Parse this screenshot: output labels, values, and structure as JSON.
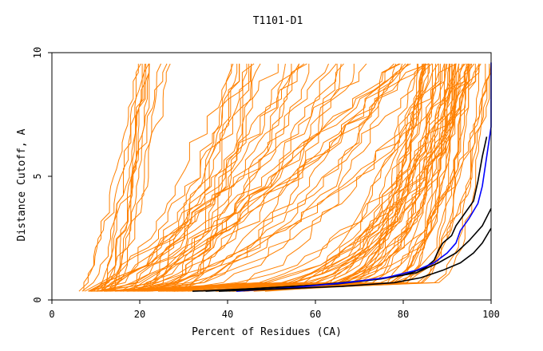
{
  "chart_data": {
    "type": "line",
    "title": "T1101-D1",
    "xlabel": "Percent of Residues (CA)",
    "ylabel": "Distance Cutoff, A",
    "xlim": [
      0,
      100
    ],
    "ylim": [
      0,
      10
    ],
    "xticks": [
      0,
      20,
      40,
      60,
      80,
      100
    ],
    "yticks": [
      0,
      5,
      10
    ],
    "grid": false,
    "legend": "none",
    "colors": {
      "background": "#ffffff",
      "axis": "#000000",
      "models": "#ff8000",
      "highlight_black": "#000000",
      "highlight_blue": "#0000ff"
    },
    "highlight_series": [
      {
        "color": "#000000",
        "points": [
          [
            32,
            0.35
          ],
          [
            45,
            0.45
          ],
          [
            60,
            0.6
          ],
          [
            72,
            0.8
          ],
          [
            80,
            1.0
          ],
          [
            85,
            1.3
          ],
          [
            87,
            1.6
          ],
          [
            88,
            2.0
          ],
          [
            89,
            2.3
          ],
          [
            91,
            2.6
          ],
          [
            92,
            3.0
          ],
          [
            94,
            3.5
          ],
          [
            96,
            4.0
          ],
          [
            97,
            4.8
          ],
          [
            98,
            5.8
          ],
          [
            99,
            6.6
          ]
        ]
      },
      {
        "color": "#000000",
        "points": [
          [
            35,
            0.35
          ],
          [
            50,
            0.5
          ],
          [
            65,
            0.65
          ],
          [
            75,
            0.85
          ],
          [
            83,
            1.1
          ],
          [
            88,
            1.5
          ],
          [
            92,
            1.9
          ],
          [
            95,
            2.4
          ],
          [
            98,
            3.0
          ],
          [
            100,
            3.7
          ]
        ]
      },
      {
        "color": "#0000ff",
        "points": [
          [
            42,
            0.35
          ],
          [
            55,
            0.5
          ],
          [
            67,
            0.7
          ],
          [
            76,
            0.9
          ],
          [
            83,
            1.2
          ],
          [
            87,
            1.5
          ],
          [
            90,
            1.9
          ],
          [
            92,
            2.3
          ],
          [
            93,
            2.8
          ],
          [
            95,
            3.3
          ],
          [
            97,
            3.9
          ],
          [
            98,
            4.6
          ],
          [
            99,
            5.8
          ],
          [
            100,
            7.0
          ],
          [
            100,
            9.6
          ]
        ]
      },
      {
        "color": "#000000",
        "points": [
          [
            38,
            0.35
          ],
          [
            52,
            0.45
          ],
          [
            66,
            0.55
          ],
          [
            78,
            0.7
          ],
          [
            84,
            0.9
          ],
          [
            89,
            1.2
          ],
          [
            93,
            1.5
          ],
          [
            96,
            1.9
          ],
          [
            98,
            2.3
          ],
          [
            100,
            2.9
          ]
        ]
      }
    ]
  }
}
